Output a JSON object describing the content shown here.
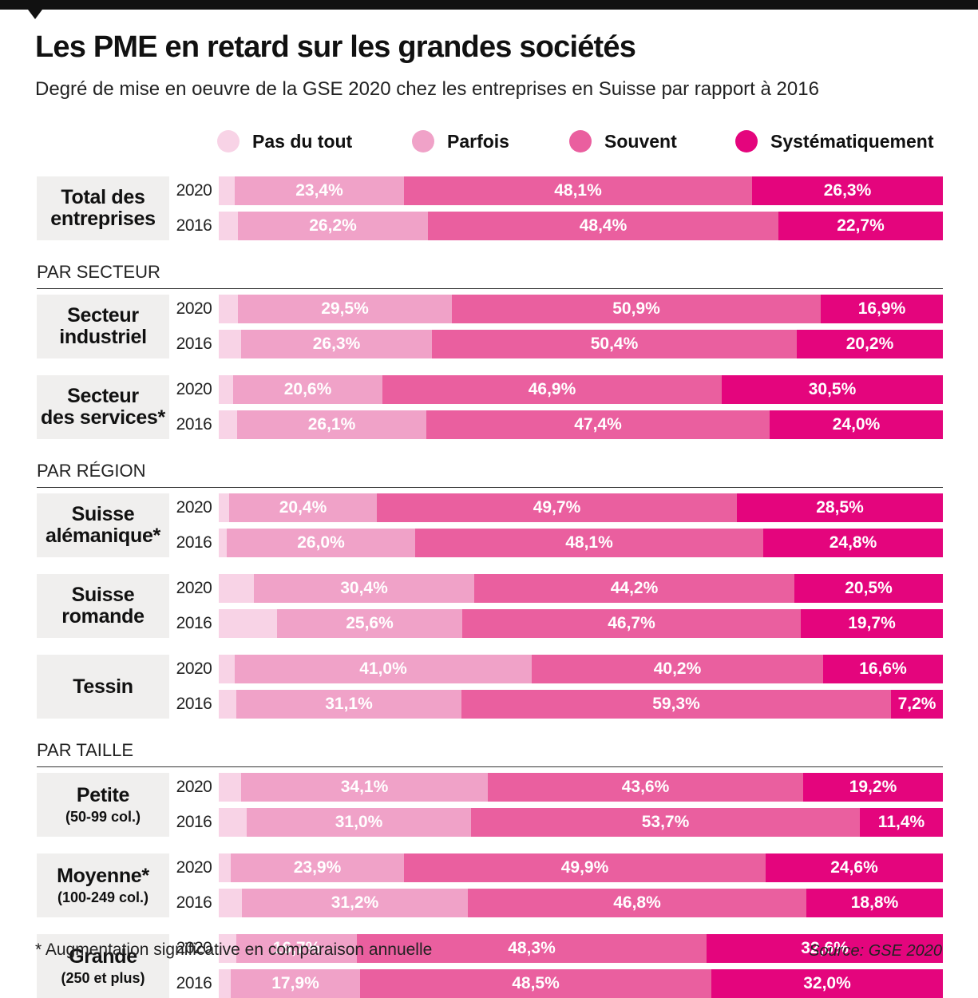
{
  "title": "Les PME en retard sur les grandes sociétés",
  "subtitle": "Degré de mise en oeuvre de la GSE 2020 chez les entreprises en Suisse par rapport à 2016",
  "footnote": "* Augmentation significative en comparaison annuelle",
  "source": "Source: GSE 2020",
  "colors": {
    "Pas du tout": "#f8d3e6",
    "Parfois": "#f0a2c8",
    "Souvent": "#ea5f9f",
    "Systématiquement": "#e4057d"
  },
  "chart_data": {
    "type": "bar",
    "orientation": "horizontal",
    "stacked": true,
    "title": "Les PME en retard sur les grandes sociétés",
    "subtitle": "Degré de mise en oeuvre de la GSE 2020 chez les entreprises en Suisse par rapport à 2016",
    "legend": [
      "Pas du tout",
      "Parfois",
      "Souvent",
      "Systématiquement"
    ],
    "legend_position": "top",
    "sections": [
      {
        "label": "",
        "groups": [
          {
            "name": "Total des\nentreprises",
            "sub": "",
            "rows": [
              {
                "year": "2020",
                "values": [
                  2.2,
                  23.4,
                  48.1,
                  26.3
                ],
                "labels": [
                  "",
                  "23,4%",
                  "48,1%",
                  "26,3%"
                ]
              },
              {
                "year": "2016",
                "values": [
                  2.7,
                  26.2,
                  48.4,
                  22.7
                ],
                "labels": [
                  "",
                  "26,2%",
                  "48,4%",
                  "22,7%"
                ]
              }
            ]
          }
        ]
      },
      {
        "label": "PAR SECTEUR",
        "groups": [
          {
            "name": "Secteur\nindustriel",
            "sub": "",
            "rows": [
              {
                "year": "2020",
                "values": [
                  2.7,
                  29.5,
                  50.9,
                  16.9
                ],
                "labels": [
                  "",
                  "29,5%",
                  "50,9%",
                  "16,9%"
                ]
              },
              {
                "year": "2016",
                "values": [
                  3.1,
                  26.3,
                  50.4,
                  20.2
                ],
                "labels": [
                  "",
                  "26,3%",
                  "50,4%",
                  "20,2%"
                ]
              }
            ]
          },
          {
            "name": "Secteur\ndes services*",
            "sub": "",
            "rows": [
              {
                "year": "2020",
                "values": [
                  2.0,
                  20.6,
                  46.9,
                  30.5
                ],
                "labels": [
                  "",
                  "20,6%",
                  "46,9%",
                  "30,5%"
                ]
              },
              {
                "year": "2016",
                "values": [
                  2.5,
                  26.1,
                  47.4,
                  24.0
                ],
                "labels": [
                  "",
                  "26,1%",
                  "47,4%",
                  "24,0%"
                ]
              }
            ]
          }
        ]
      },
      {
        "label": "PAR RÉGION",
        "groups": [
          {
            "name": "Suisse\nalémanique*",
            "sub": "",
            "rows": [
              {
                "year": "2020",
                "values": [
                  1.4,
                  20.4,
                  49.7,
                  28.5
                ],
                "labels": [
                  "",
                  "20,4%",
                  "49,7%",
                  "28,5%"
                ]
              },
              {
                "year": "2016",
                "values": [
                  1.1,
                  26.0,
                  48.1,
                  24.8
                ],
                "labels": [
                  "",
                  "26,0%",
                  "48,1%",
                  "24,8%"
                ]
              }
            ]
          },
          {
            "name": "Suisse\nromande",
            "sub": "",
            "rows": [
              {
                "year": "2020",
                "values": [
                  4.9,
                  30.4,
                  44.2,
                  20.5
                ],
                "labels": [
                  "",
                  "30,4%",
                  "44,2%",
                  "20,5%"
                ]
              },
              {
                "year": "2016",
                "values": [
                  8.0,
                  25.6,
                  46.7,
                  19.7
                ],
                "labels": [
                  "",
                  "25,6%",
                  "46,7%",
                  "19,7%"
                ]
              }
            ]
          },
          {
            "name": "Tessin",
            "sub": "",
            "rows": [
              {
                "year": "2020",
                "values": [
                  2.2,
                  41.0,
                  40.2,
                  16.6
                ],
                "labels": [
                  "",
                  "41,0%",
                  "40,2%",
                  "16,6%"
                ]
              },
              {
                "year": "2016",
                "values": [
                  2.4,
                  31.1,
                  59.3,
                  7.2
                ],
                "labels": [
                  "",
                  "31,1%",
                  "59,3%",
                  "7,2%"
                ]
              }
            ]
          }
        ]
      },
      {
        "label": "PAR TAILLE",
        "groups": [
          {
            "name": "Petite",
            "sub": "(50-99 col.)",
            "rows": [
              {
                "year": "2020",
                "values": [
                  3.1,
                  34.1,
                  43.6,
                  19.2
                ],
                "labels": [
                  "",
                  "34,1%",
                  "43,6%",
                  "19,2%"
                ]
              },
              {
                "year": "2016",
                "values": [
                  3.9,
                  31.0,
                  53.7,
                  11.4
                ],
                "labels": [
                  "",
                  "31,0%",
                  "53,7%",
                  "11,4%"
                ]
              }
            ]
          },
          {
            "name": "Moyenne*",
            "sub": "(100-249 col.)",
            "rows": [
              {
                "year": "2020",
                "values": [
                  1.6,
                  23.9,
                  49.9,
                  24.6
                ],
                "labels": [
                  "",
                  "23,9%",
                  "49,9%",
                  "24,6%"
                ]
              },
              {
                "year": "2016",
                "values": [
                  3.2,
                  31.2,
                  46.8,
                  18.8
                ],
                "labels": [
                  "",
                  "31,2%",
                  "46,8%",
                  "18,8%"
                ]
              }
            ]
          },
          {
            "name": "Grande",
            "sub": "(250 et plus)",
            "rows": [
              {
                "year": "2020",
                "values": [
                  2.4,
                  16.7,
                  48.3,
                  32.6
                ],
                "labels": [
                  "",
                  "16,7%",
                  "48,3%",
                  "32,6%"
                ]
              },
              {
                "year": "2016",
                "values": [
                  1.6,
                  17.9,
                  48.5,
                  32.0
                ],
                "labels": [
                  "",
                  "17,9%",
                  "48,5%",
                  "32,0%"
                ]
              }
            ]
          }
        ]
      }
    ]
  }
}
